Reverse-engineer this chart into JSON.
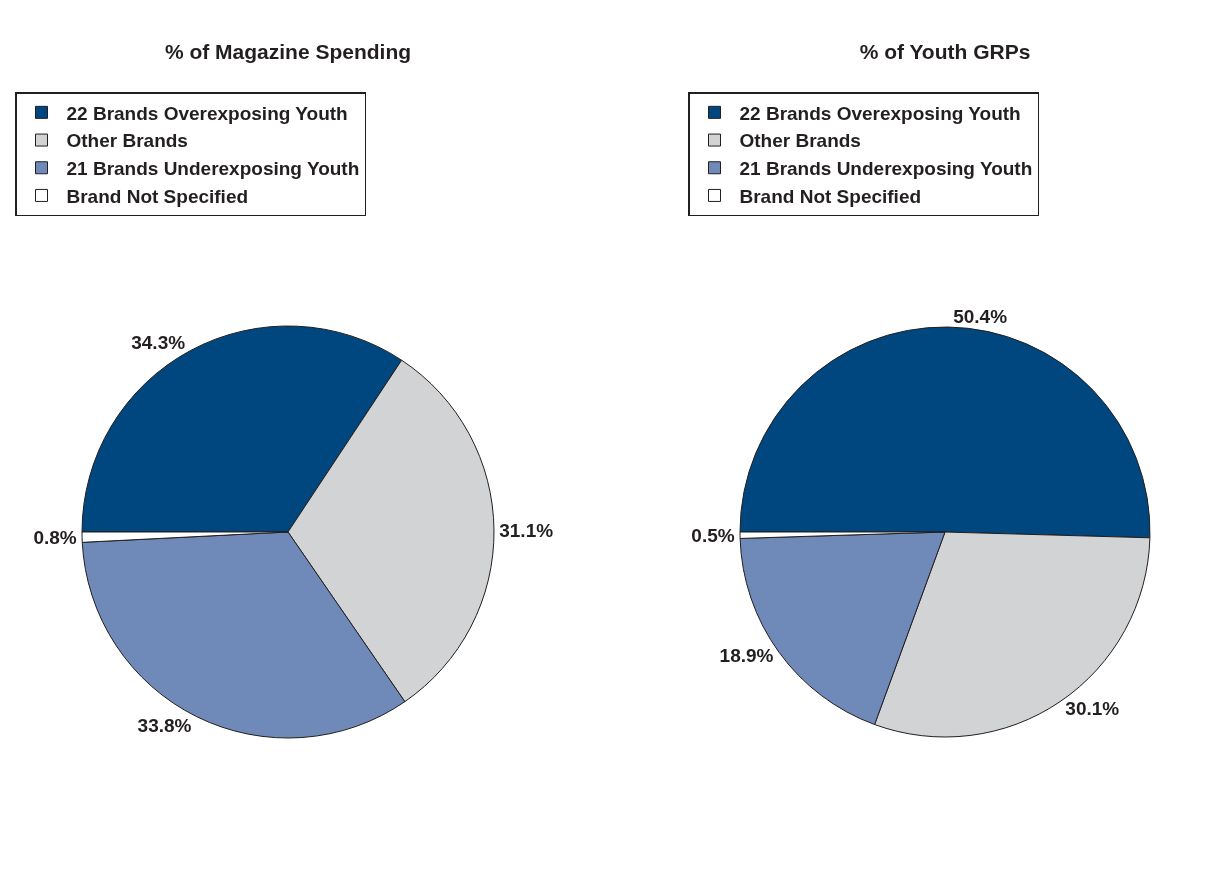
{
  "chart_data": [
    {
      "type": "pie",
      "title": "% of Magazine Spending",
      "categories": [
        "22 Brands Overexposing Youth",
        "Other Brands",
        "21 Brands Underexposing Youth",
        "Brand Not Specified"
      ],
      "values": [
        34.3,
        31.1,
        33.8,
        0.8
      ],
      "value_labels": [
        "34.3%",
        "31.1%",
        "33.8%",
        "0.8%"
      ],
      "colors": [
        "#00467f",
        "#d1d3d4",
        "#6f89b8",
        "#ffffff"
      ],
      "legend": "top"
    },
    {
      "type": "pie",
      "title": "% of Youth GRPs",
      "categories": [
        "22 Brands Overexposing Youth",
        "Other Brands",
        "21 Brands Underexposing Youth",
        "Brand Not Specified"
      ],
      "values": [
        50.4,
        30.1,
        18.9,
        0.5
      ],
      "value_labels": [
        "50.4%",
        "30.1%",
        "18.9%",
        "0.5%"
      ],
      "colors": [
        "#00467f",
        "#d1d3d4",
        "#6f89b8",
        "#ffffff"
      ],
      "legend": "top"
    }
  ]
}
